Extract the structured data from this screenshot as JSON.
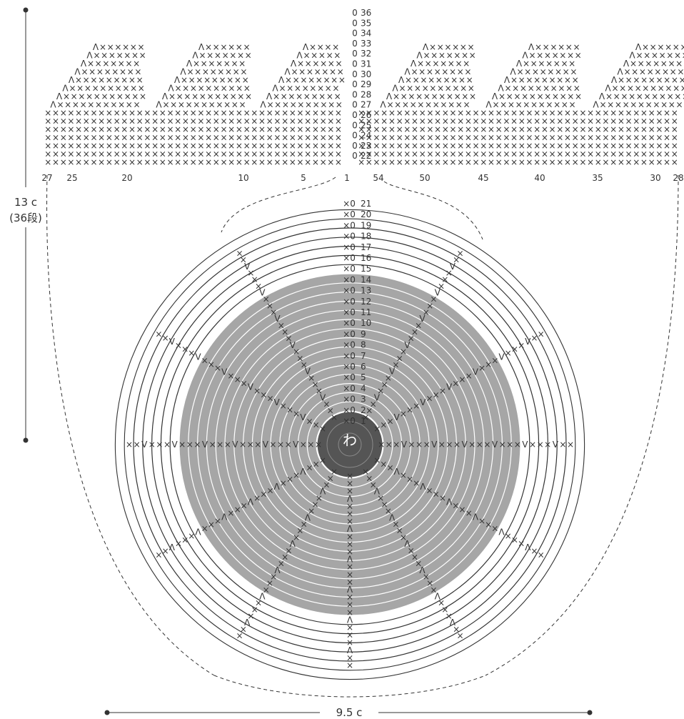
{
  "colors": {
    "line": "#333333",
    "light_fill": "#a6a6a6",
    "dark_fill": "#555555",
    "background": "#ffffff"
  },
  "dimensions": {
    "height_label": "13 c",
    "height_sub": "(36段)",
    "width_label": "9.5 c"
  },
  "center_symbol": "わ",
  "symbols": {
    "single_crochet": "×",
    "increase": "V",
    "decrease": "Λ"
  },
  "row_numbers_top": [
    "36",
    "35",
    "34",
    "33",
    "32",
    "31",
    "30",
    "29",
    "28",
    "27",
    "26",
    "25",
    "24",
    "23",
    "22"
  ],
  "row_numbers_bottom": [
    "21",
    "20",
    "19",
    "18",
    "17",
    "16",
    "15",
    "14",
    "13",
    "12",
    "11",
    "10",
    "9",
    "8",
    "7",
    "6",
    "5",
    "4",
    "3",
    "2",
    "1"
  ],
  "stitch_numbers": [
    "27",
    "25",
    "20",
    "10",
    "5",
    "1",
    "54",
    "50",
    "45",
    "40",
    "35",
    "30",
    "28"
  ],
  "rows": {
    "round_start": 1,
    "round_end": 21,
    "flat_start": 22,
    "flat_end": 36
  }
}
